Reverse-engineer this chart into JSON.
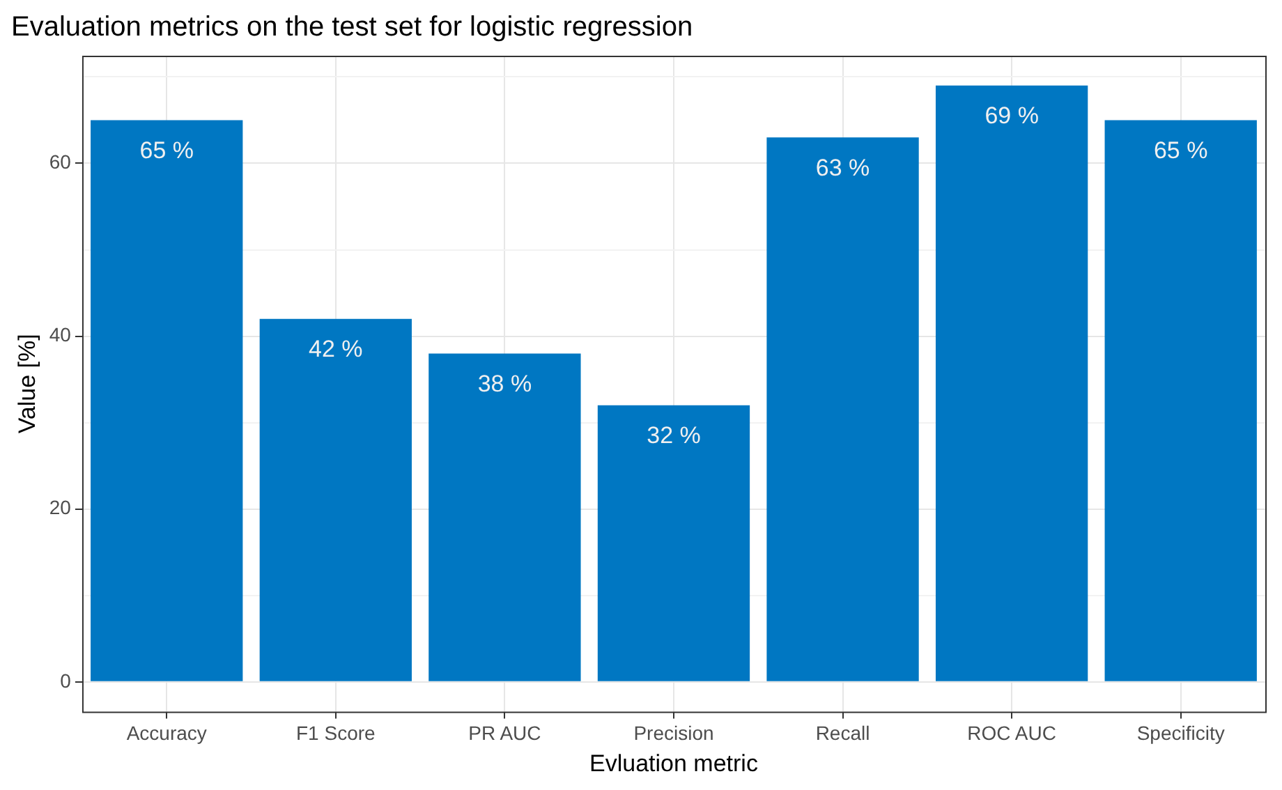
{
  "chart_data": {
    "type": "bar",
    "title": "Evaluation metrics on the test set for logistic regression",
    "xlabel": "Evluation metric",
    "ylabel": "Value [%]",
    "categories": [
      "Accuracy",
      "F1 Score",
      "PR AUC",
      "Precision",
      "Recall",
      "ROC AUC",
      "Specificity"
    ],
    "values": [
      65,
      42,
      38,
      32,
      63,
      69,
      65
    ],
    "color": "#0077c2",
    "value_labels": [
      "65 %",
      "42 %",
      "38 %",
      "32 %",
      "63 %",
      "69 %",
      "65 %"
    ],
    "ylim": [
      -3.45,
      72.45
    ],
    "yticks": [
      0,
      {
        "value": 10,
        "label": null
      },
      20,
      {
        "value": 30,
        "label": null
      },
      40,
      {
        "value": 50,
        "label": null
      },
      60,
      {
        "value": 70,
        "label": null
      }
    ],
    "grid": true,
    "legend": false
  }
}
